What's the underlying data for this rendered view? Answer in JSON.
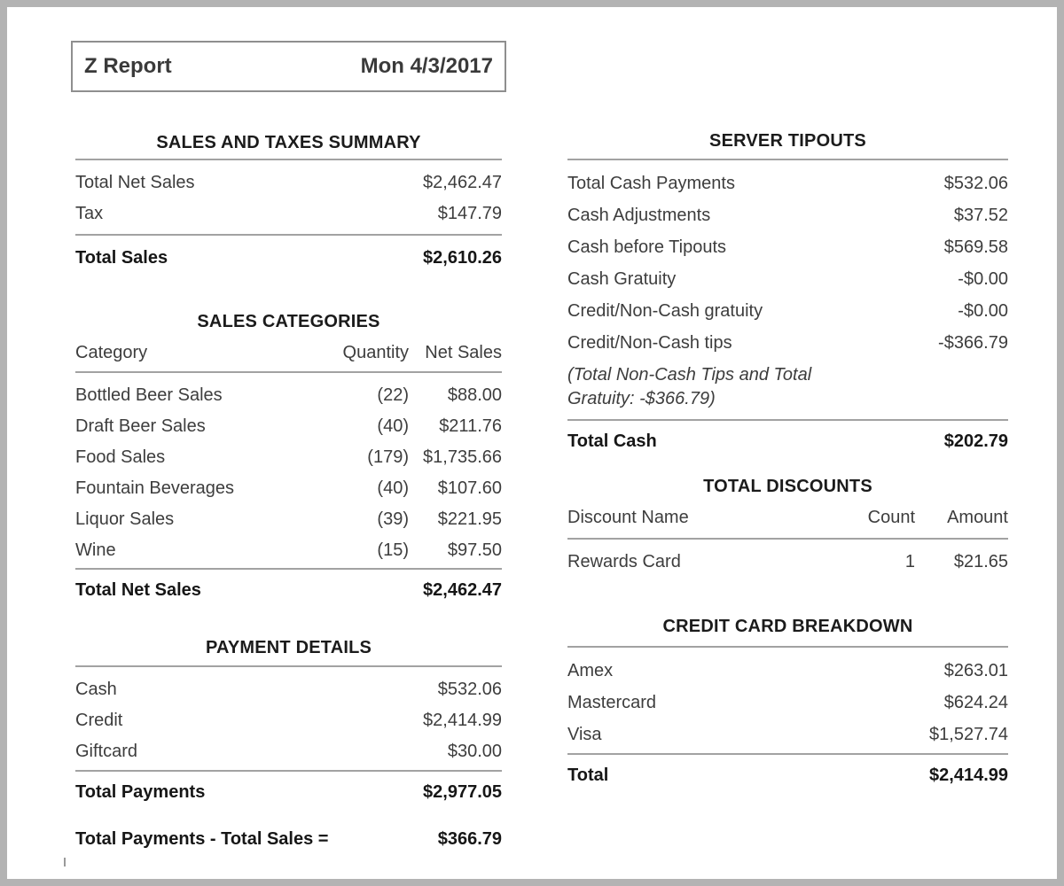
{
  "header": {
    "title": "Z Report",
    "date": "Mon 4/3/2017"
  },
  "left": {
    "sales_taxes": {
      "title": "SALES AND TAXES SUMMARY",
      "rows": [
        {
          "label": "Total Net Sales",
          "value": "$2,462.47"
        },
        {
          "label": "Tax",
          "value": "$147.79"
        }
      ],
      "total": {
        "label": "Total Sales",
        "value": "$2,610.26"
      }
    },
    "categories": {
      "title": "SALES CATEGORIES",
      "col_category": "Category",
      "col_quantity": "Quantity",
      "col_net_sales": "Net Sales",
      "rows": [
        {
          "label": "Bottled Beer Sales",
          "qty": "(22)",
          "value": "$88.00"
        },
        {
          "label": "Draft Beer Sales",
          "qty": "(40)",
          "value": "$211.76"
        },
        {
          "label": "Food Sales",
          "qty": "(179)",
          "value": "$1,735.66"
        },
        {
          "label": "Fountain Beverages",
          "qty": "(40)",
          "value": "$107.60"
        },
        {
          "label": "Liquor Sales",
          "qty": "(39)",
          "value": "$221.95"
        },
        {
          "label": "Wine",
          "qty": "(15)",
          "value": "$97.50"
        }
      ],
      "total": {
        "label": "Total Net Sales",
        "value": "$2,462.47"
      }
    },
    "payments": {
      "title": "PAYMENT DETAILS",
      "rows": [
        {
          "label": "Cash",
          "value": "$532.06"
        },
        {
          "label": "Credit",
          "value": "$2,414.99"
        },
        {
          "label": "Giftcard",
          "value": "$30.00"
        }
      ],
      "total": {
        "label": "Total Payments",
        "value": "$2,977.05"
      },
      "difference": {
        "label": "Total Payments - Total Sales =",
        "value": "$366.79"
      }
    }
  },
  "right": {
    "tipouts": {
      "title": "SERVER TIPOUTS",
      "rows": [
        {
          "label": "Total Cash Payments",
          "value": "$532.06"
        },
        {
          "label": "Cash Adjustments",
          "value": "$37.52"
        },
        {
          "label": "Cash before Tipouts",
          "value": "$569.58"
        },
        {
          "label": "Cash Gratuity",
          "value": "-$0.00"
        },
        {
          "label": "Credit/Non-Cash gratuity",
          "value": "-$0.00"
        },
        {
          "label": "Credit/Non-Cash tips",
          "value": "-$366.79"
        }
      ],
      "note_line1": "(Total Non-Cash Tips and Total",
      "note_line2": "Gratuity: -$366.79)",
      "total": {
        "label": "Total Cash",
        "value": "$202.79"
      }
    },
    "discounts": {
      "title": "TOTAL DISCOUNTS",
      "col_name": "Discount Name",
      "col_count": "Count",
      "col_amount": "Amount",
      "rows": [
        {
          "label": "Rewards Card",
          "count": "1",
          "value": "$21.65"
        }
      ]
    },
    "cards": {
      "title": "CREDIT CARD BREAKDOWN",
      "rows": [
        {
          "label": "Amex",
          "value": "$263.01"
        },
        {
          "label": "Mastercard",
          "value": "$624.24"
        },
        {
          "label": "Visa",
          "value": "$1,527.74"
        }
      ],
      "total": {
        "label": "Total",
        "value": "$2,414.99"
      }
    }
  }
}
